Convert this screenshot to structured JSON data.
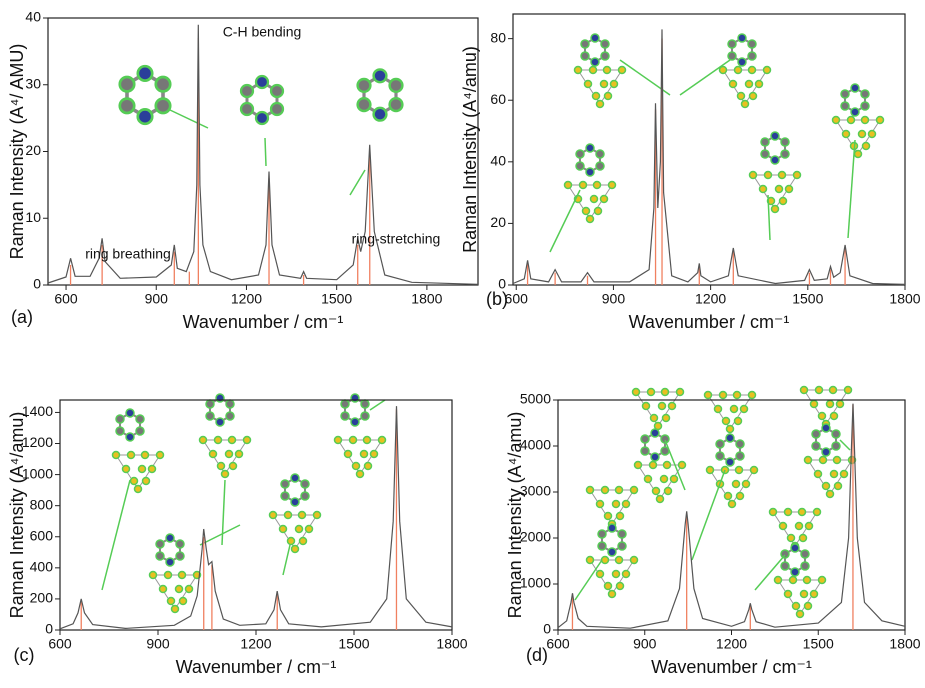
{
  "chart_data": [
    {
      "type": "line",
      "panel_label": "(a)",
      "xlabel": "Wavenumber / cm⁻¹",
      "ylabel": "Raman Intensity (A⁴/ AMU)",
      "xlim": [
        540,
        1970
      ],
      "xticks": [
        600,
        900,
        1200,
        1500,
        1800
      ],
      "ylim": [
        0,
        40
      ],
      "yticks": [
        0,
        10,
        20,
        30,
        40
      ],
      "color": "#555555",
      "stick_color": "#f08060",
      "x": [
        540,
        600,
        615,
        630,
        680,
        710,
        720,
        730,
        780,
        900,
        950,
        960,
        970,
        1000,
        1025,
        1035,
        1040,
        1045,
        1055,
        1080,
        1150,
        1240,
        1265,
        1275,
        1285,
        1310,
        1380,
        1390,
        1400,
        1500,
        1555,
        1570,
        1580,
        1595,
        1610,
        1625,
        1660,
        1750,
        1970
      ],
      "values": [
        0.3,
        1.2,
        4,
        1.3,
        1.3,
        4,
        7,
        3.5,
        1.0,
        1.2,
        3,
        6,
        2.5,
        2,
        5,
        15,
        39,
        15,
        6,
        2,
        0.8,
        1.5,
        6,
        17,
        6,
        1.5,
        1,
        2,
        1,
        0.8,
        3,
        7,
        5,
        8,
        21,
        8,
        1.5,
        0.4,
        0.1
      ],
      "stick_x": [
        615,
        720,
        960,
        1010,
        1040,
        1275,
        1390,
        1570,
        1610
      ],
      "stick_values": [
        3,
        6,
        5,
        2,
        37,
        16,
        1.5,
        6,
        20
      ],
      "annotations": [
        "C-H bending",
        "ring breathing",
        "ring-stretching"
      ]
    },
    {
      "type": "line",
      "panel_label": "(b)",
      "xlabel": "Wavenumber / cm⁻¹",
      "ylabel": "Raman Intensity (A⁴/amu)",
      "xlim": [
        590,
        1800
      ],
      "xticks": [
        600,
        900,
        1200,
        1500,
        1800
      ],
      "ylim": [
        0,
        88
      ],
      "yticks": [
        0,
        20,
        40,
        60,
        80
      ],
      "color": "#555555",
      "stick_color": "#f08060",
      "x": [
        590,
        625,
        635,
        645,
        700,
        720,
        740,
        800,
        820,
        840,
        950,
        1010,
        1025,
        1030,
        1037,
        1045,
        1050,
        1055,
        1080,
        1130,
        1160,
        1165,
        1170,
        1200,
        1255,
        1270,
        1285,
        1400,
        1490,
        1505,
        1520,
        1560,
        1570,
        1580,
        1600,
        1615,
        1630,
        1700,
        1800
      ],
      "values": [
        0.5,
        2,
        8,
        2,
        1,
        5,
        1,
        1,
        4,
        1,
        1,
        5,
        25,
        59,
        25,
        40,
        83,
        30,
        3,
        1,
        4,
        7,
        3,
        1,
        3,
        12,
        3,
        0.5,
        1.5,
        5,
        1.5,
        2,
        6,
        2.5,
        4,
        13,
        3,
        0.5,
        0.2
      ],
      "stick_x": [
        635,
        720,
        820,
        1030,
        1050,
        1165,
        1270,
        1505,
        1570,
        1615
      ],
      "stick_values": [
        7,
        4,
        3,
        57,
        80,
        6,
        11,
        4,
        5,
        12
      ]
    },
    {
      "type": "line",
      "panel_label": "(c)",
      "xlabel": "Wavenumber / cm⁻¹",
      "ylabel": "Raman Intensity (A⁴/amu)",
      "xlim": [
        600,
        1800
      ],
      "xticks": [
        600,
        900,
        1200,
        1500,
        1800
      ],
      "ylim": [
        0,
        1480
      ],
      "yticks": [
        0,
        200,
        400,
        600,
        800,
        1000,
        1200,
        1400
      ],
      "color": "#555555",
      "stick_color": "#f08060",
      "x": [
        600,
        640,
        655,
        665,
        675,
        700,
        800,
        950,
        1000,
        1020,
        1035,
        1040,
        1048,
        1055,
        1065,
        1075,
        1100,
        1150,
        1230,
        1255,
        1265,
        1275,
        1300,
        1400,
        1550,
        1600,
        1620,
        1630,
        1640,
        1660,
        1720,
        1800
      ],
      "values": [
        8,
        40,
        110,
        200,
        110,
        35,
        10,
        30,
        90,
        220,
        520,
        650,
        520,
        420,
        440,
        250,
        70,
        30,
        40,
        130,
        250,
        130,
        40,
        20,
        50,
        200,
        700,
        1440,
        700,
        200,
        50,
        20
      ],
      "stick_x": [
        665,
        1040,
        1065,
        1265,
        1630
      ],
      "stick_values": [
        180,
        600,
        420,
        240,
        1420
      ]
    },
    {
      "type": "line",
      "panel_label": "(d)",
      "xlabel": "Wavenumber / cm⁻¹",
      "ylabel": "Raman Intensity (A⁴/amu)",
      "xlim": [
        600,
        1800
      ],
      "xticks": [
        600,
        900,
        1200,
        1500,
        1800
      ],
      "ylim": [
        0,
        5000
      ],
      "yticks": [
        0,
        1000,
        2000,
        3000,
        4000,
        5000
      ],
      "color": "#555555",
      "stick_color": "#f08060",
      "x": [
        600,
        630,
        645,
        650,
        655,
        670,
        700,
        850,
        980,
        1020,
        1040,
        1045,
        1050,
        1070,
        1100,
        1200,
        1245,
        1260,
        1265,
        1270,
        1285,
        1350,
        1500,
        1580,
        1605,
        1615,
        1620,
        1625,
        1635,
        1660,
        1720,
        1800
      ],
      "values": [
        50,
        200,
        600,
        800,
        600,
        250,
        80,
        40,
        200,
        900,
        2300,
        2580,
        2300,
        900,
        250,
        80,
        180,
        450,
        580,
        450,
        180,
        60,
        150,
        600,
        2000,
        4000,
        4920,
        4000,
        2000,
        600,
        200,
        80
      ],
      "stick_x": [
        650,
        1045,
        1265,
        1620
      ],
      "stick_values": [
        780,
        2500,
        560,
        4900
      ]
    }
  ]
}
